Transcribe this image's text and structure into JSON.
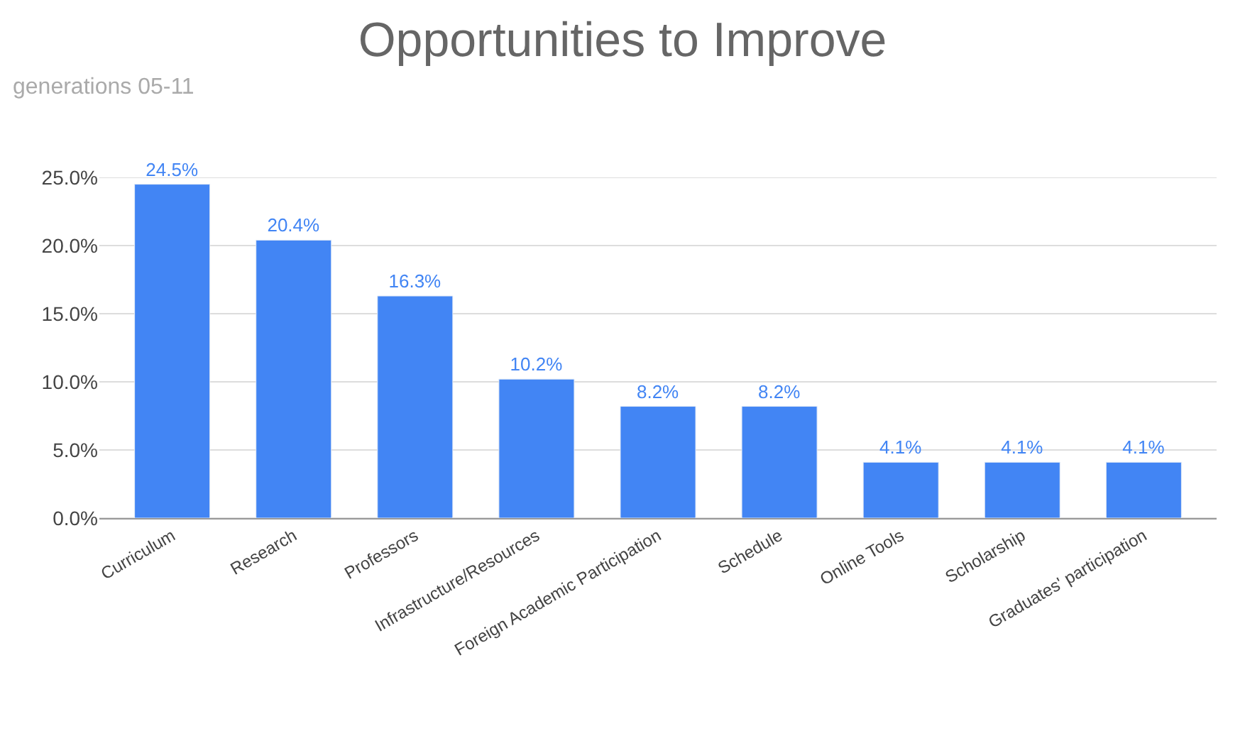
{
  "chart_data": {
    "type": "bar",
    "title": "Opportunities to Improve",
    "subtitle": "generations 05-11",
    "categories": [
      "Curriculum",
      "Research",
      "Professors",
      "Infrastructure/Resources",
      "Foreign Academic Participation",
      "Schedule",
      "Online Tools",
      "Scholarship",
      "Graduates' participation"
    ],
    "values": [
      24.5,
      20.4,
      16.3,
      10.2,
      8.2,
      8.2,
      4.1,
      4.1,
      4.1
    ],
    "value_labels": [
      "24.5%",
      "20.4%",
      "16.3%",
      "10.2%",
      "8.2%",
      "8.2%",
      "4.1%",
      "4.1%",
      "4.1%"
    ],
    "color": "#4285f4",
    "ylim": [
      0,
      25
    ],
    "yticks": [
      {
        "value": 0,
        "label": "0.0%"
      },
      {
        "value": 5,
        "label": "5.0%"
      },
      {
        "value": 10,
        "label": "10.0%"
      },
      {
        "value": 15,
        "label": "15.0%"
      },
      {
        "value": 20,
        "label": "20.0%"
      },
      {
        "value": 25,
        "label": "25.0%"
      }
    ],
    "grid": "y"
  }
}
